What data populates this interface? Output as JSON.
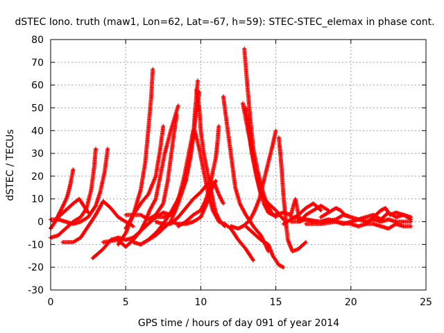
{
  "chart_data": {
    "type": "scatter",
    "title": "dSTEC Iono. truth (maw1, Lon=62, Lat=-67, h=59): STEC-STEC_elemax in phase cont.",
    "xlabel": "GPS time / hours of day 091 of year 2014",
    "ylabel": "dSTEC  / TECUs",
    "xlim": [
      0,
      25
    ],
    "ylim": [
      -30,
      80
    ],
    "xticks": [
      0,
      5,
      10,
      15,
      20,
      25
    ],
    "yticks": [
      -30,
      -20,
      -10,
      0,
      10,
      20,
      30,
      40,
      50,
      60,
      70,
      80
    ],
    "grid": true,
    "marker": "+",
    "color": "#ff0000",
    "series": [
      {
        "values": [
          [
            0.0,
            -7
          ],
          [
            0.5,
            -6
          ],
          [
            1.0,
            -3
          ],
          [
            1.5,
            0
          ],
          [
            2.0,
            2
          ],
          [
            2.4,
            6
          ],
          [
            2.7,
            14
          ],
          [
            2.9,
            24
          ],
          [
            3.0,
            32
          ]
        ]
      },
      {
        "values": [
          [
            0.0,
            -3
          ],
          [
            0.3,
            0
          ],
          [
            0.6,
            4
          ],
          [
            0.9,
            8
          ],
          [
            1.1,
            11
          ],
          [
            1.3,
            16
          ],
          [
            1.5,
            23
          ]
        ]
      },
      {
        "values": [
          [
            0.0,
            1
          ],
          [
            0.5,
            1
          ],
          [
            1.0,
            0
          ],
          [
            1.5,
            -1
          ],
          [
            2.0,
            0
          ],
          [
            2.5,
            2
          ],
          [
            3.0,
            7
          ],
          [
            3.3,
            13
          ],
          [
            3.6,
            22
          ],
          [
            3.8,
            32
          ]
        ]
      },
      {
        "values": [
          [
            0.5,
            2
          ],
          [
            1.0,
            5
          ],
          [
            1.5,
            8
          ],
          [
            1.9,
            10
          ],
          [
            2.2,
            7
          ],
          [
            2.5,
            4
          ]
        ]
      },
      {
        "values": [
          [
            0.8,
            -9
          ],
          [
            1.5,
            -9
          ],
          [
            2.0,
            -7
          ],
          [
            2.5,
            -2
          ],
          [
            3.0,
            3
          ],
          [
            3.5,
            9
          ],
          [
            4.0,
            6
          ],
          [
            4.5,
            2
          ],
          [
            5.0,
            0
          ],
          [
            5.5,
            -2
          ]
        ]
      },
      {
        "values": [
          [
            2.8,
            -16
          ],
          [
            3.5,
            -12
          ],
          [
            4.0,
            -8
          ],
          [
            4.5,
            -7
          ],
          [
            5.0,
            -8
          ],
          [
            5.5,
            -7
          ],
          [
            6.0,
            -4
          ],
          [
            6.5,
            -1
          ],
          [
            7.0,
            2
          ],
          [
            7.5,
            4
          ],
          [
            8.0,
            3
          ]
        ]
      },
      {
        "values": [
          [
            3.5,
            -9
          ],
          [
            4.5,
            -8
          ],
          [
            5.0,
            -11
          ],
          [
            5.5,
            -8
          ],
          [
            6.0,
            -4
          ],
          [
            6.3,
            0
          ],
          [
            6.6,
            5
          ],
          [
            7.0,
            10
          ],
          [
            7.3,
            20
          ],
          [
            7.6,
            30
          ],
          [
            8.0,
            40
          ],
          [
            8.5,
            51
          ]
        ]
      },
      {
        "values": [
          [
            4.5,
            -10
          ],
          [
            5.0,
            -5
          ],
          [
            5.5,
            3
          ],
          [
            6.0,
            14
          ],
          [
            6.3,
            26
          ],
          [
            6.5,
            40
          ],
          [
            6.7,
            55
          ],
          [
            6.8,
            67
          ]
        ]
      },
      {
        "values": [
          [
            5.0,
            -3
          ],
          [
            5.5,
            3
          ],
          [
            6.0,
            8
          ],
          [
            6.5,
            12
          ],
          [
            7.0,
            20
          ],
          [
            7.3,
            32
          ],
          [
            7.5,
            42
          ]
        ]
      },
      {
        "values": [
          [
            5.0,
            3
          ],
          [
            6.0,
            3
          ],
          [
            6.5,
            1
          ],
          [
            7.0,
            3
          ],
          [
            7.5,
            8
          ],
          [
            7.8,
            18
          ],
          [
            8.0,
            28
          ],
          [
            8.2,
            38
          ],
          [
            8.4,
            47
          ]
        ]
      },
      {
        "values": [
          [
            5.5,
            -9
          ],
          [
            6.0,
            -10
          ],
          [
            6.5,
            -8
          ],
          [
            7.0,
            -5
          ],
          [
            7.5,
            -1
          ],
          [
            8.0,
            4
          ],
          [
            8.5,
            10
          ],
          [
            9.0,
            18
          ],
          [
            9.3,
            28
          ],
          [
            9.5,
            37
          ],
          [
            9.6,
            47
          ],
          [
            9.8,
            62
          ]
        ]
      },
      {
        "values": [
          [
            6.0,
            -10
          ],
          [
            7.0,
            -6
          ],
          [
            8.0,
            0
          ],
          [
            8.5,
            8
          ],
          [
            9.0,
            18
          ],
          [
            9.3,
            28
          ],
          [
            9.5,
            38
          ],
          [
            9.7,
            48
          ],
          [
            9.9,
            57
          ]
        ]
      },
      {
        "values": [
          [
            8.5,
            -2
          ],
          [
            9.0,
            0
          ],
          [
            9.5,
            3
          ],
          [
            10.0,
            5
          ],
          [
            10.3,
            9
          ],
          [
            10.6,
            15
          ],
          [
            10.8,
            22
          ],
          [
            11.0,
            28
          ],
          [
            11.1,
            34
          ],
          [
            11.2,
            42
          ]
        ]
      },
      {
        "values": [
          [
            9.7,
            58
          ],
          [
            9.9,
            50
          ],
          [
            10.0,
            40
          ],
          [
            10.2,
            30
          ],
          [
            10.5,
            20
          ],
          [
            10.8,
            10
          ],
          [
            11.0,
            4
          ],
          [
            11.3,
            0
          ],
          [
            11.6,
            -2
          ]
        ]
      },
      {
        "values": [
          [
            9.6,
            40
          ],
          [
            9.9,
            32
          ],
          [
            10.2,
            22
          ],
          [
            10.5,
            12
          ],
          [
            10.8,
            5
          ],
          [
            11.2,
            0
          ],
          [
            11.6,
            -1
          ],
          [
            12.0,
            -3
          ],
          [
            12.5,
            -8
          ],
          [
            13.0,
            -12
          ],
          [
            13.3,
            -15
          ],
          [
            13.5,
            -17
          ]
        ]
      },
      {
        "values": [
          [
            7.0,
            0
          ],
          [
            7.5,
            -1
          ],
          [
            8.0,
            -1
          ],
          [
            8.5,
            2
          ],
          [
            9.0,
            6
          ],
          [
            9.5,
            10
          ],
          [
            10.0,
            13
          ],
          [
            10.5,
            17
          ],
          [
            10.9,
            17
          ],
          [
            11.2,
            12
          ],
          [
            11.5,
            8
          ]
        ]
      },
      {
        "values": [
          [
            8.0,
            0
          ],
          [
            8.5,
            -1
          ],
          [
            9.0,
            -1
          ],
          [
            9.5,
            0
          ],
          [
            10.0,
            2
          ],
          [
            10.4,
            8
          ],
          [
            10.7,
            14
          ],
          [
            11.0,
            18
          ]
        ]
      },
      {
        "values": [
          [
            7.0,
            2
          ],
          [
            7.5,
            2
          ],
          [
            8.0,
            3
          ],
          [
            8.3,
            6
          ],
          [
            8.6,
            12
          ],
          [
            8.9,
            20
          ],
          [
            9.2,
            30
          ],
          [
            9.5,
            40
          ]
        ]
      },
      {
        "values": [
          [
            11.5,
            55
          ],
          [
            11.7,
            45
          ],
          [
            11.9,
            35
          ],
          [
            12.1,
            25
          ],
          [
            12.3,
            15
          ],
          [
            12.6,
            8
          ],
          [
            13.0,
            3
          ],
          [
            13.5,
            -2
          ],
          [
            14.0,
            -6
          ],
          [
            14.3,
            -10
          ],
          [
            14.5,
            -13
          ]
        ]
      },
      {
        "values": [
          [
            12.0,
            -2
          ],
          [
            12.5,
            -3
          ],
          [
            12.8,
            -2
          ],
          [
            13.0,
            -1
          ],
          [
            13.3,
            1
          ],
          [
            13.6,
            5
          ],
          [
            13.9,
            10
          ],
          [
            14.2,
            18
          ],
          [
            14.5,
            26
          ],
          [
            14.8,
            34
          ],
          [
            15.0,
            40
          ]
        ]
      },
      {
        "values": [
          [
            12.9,
            76
          ],
          [
            13.1,
            60
          ],
          [
            13.3,
            45
          ],
          [
            13.5,
            32
          ],
          [
            13.8,
            22
          ],
          [
            14.1,
            14
          ],
          [
            14.4,
            8
          ],
          [
            14.7,
            4
          ],
          [
            15.0,
            2
          ]
        ]
      },
      {
        "values": [
          [
            12.8,
            52
          ],
          [
            13.0,
            45
          ],
          [
            13.3,
            35
          ],
          [
            13.6,
            25
          ],
          [
            13.9,
            15
          ],
          [
            14.2,
            8
          ],
          [
            14.5,
            4
          ],
          [
            14.8,
            3
          ],
          [
            15.2,
            3
          ]
        ]
      },
      {
        "values": [
          [
            13.0,
            50
          ],
          [
            13.2,
            40
          ],
          [
            13.4,
            30
          ],
          [
            13.7,
            20
          ],
          [
            14.0,
            12
          ],
          [
            14.5,
            8
          ],
          [
            15.0,
            5
          ],
          [
            15.5,
            1
          ]
        ]
      },
      {
        "values": [
          [
            15.2,
            37
          ],
          [
            15.3,
            30
          ],
          [
            15.4,
            22
          ],
          [
            15.5,
            12
          ],
          [
            15.6,
            5
          ],
          [
            15.7,
            -2
          ],
          [
            15.8,
            -8
          ],
          [
            16.1,
            -13
          ],
          [
            16.5,
            -12
          ],
          [
            17.0,
            -9
          ]
        ]
      },
      {
        "values": [
          [
            13.0,
            -2
          ],
          [
            13.5,
            -5
          ],
          [
            14.0,
            -8
          ],
          [
            14.5,
            -10
          ],
          [
            14.8,
            -15
          ],
          [
            15.2,
            -19
          ],
          [
            15.5,
            -20
          ]
        ]
      },
      {
        "values": [
          [
            15.0,
            3
          ],
          [
            15.5,
            4
          ],
          [
            16.0,
            3
          ],
          [
            16.3,
            10
          ],
          [
            16.6,
            0
          ],
          [
            17.0,
            3
          ],
          [
            17.5,
            5
          ],
          [
            18.0,
            7
          ],
          [
            18.5,
            5
          ]
        ]
      },
      {
        "values": [
          [
            15.5,
            -1
          ],
          [
            16.0,
            1
          ],
          [
            16.5,
            3
          ],
          [
            17.0,
            6
          ],
          [
            17.5,
            8
          ],
          [
            18.0,
            5
          ]
        ]
      },
      {
        "values": [
          [
            16.0,
            0
          ],
          [
            16.5,
            0
          ],
          [
            17.0,
            1
          ],
          [
            17.5,
            0
          ],
          [
            18.0,
            0
          ],
          [
            18.5,
            1
          ],
          [
            19.0,
            0
          ],
          [
            19.5,
            -1
          ],
          [
            20.0,
            0
          ],
          [
            20.5,
            1
          ],
          [
            21.0,
            0
          ],
          [
            21.5,
            1
          ],
          [
            22.0,
            0
          ],
          [
            22.5,
            1
          ],
          [
            23.0,
            0
          ],
          [
            23.5,
            0
          ],
          [
            24.0,
            0
          ]
        ]
      },
      {
        "values": [
          [
            16.0,
            2
          ],
          [
            17.0,
            1
          ],
          [
            18.0,
            0
          ],
          [
            19.0,
            1
          ],
          [
            19.5,
            3
          ],
          [
            20.0,
            2
          ],
          [
            20.5,
            1
          ],
          [
            21.0,
            2
          ],
          [
            21.5,
            3
          ],
          [
            22.0,
            1
          ],
          [
            22.5,
            4
          ],
          [
            23.0,
            2
          ],
          [
            23.5,
            3
          ],
          [
            24.0,
            1
          ]
        ]
      },
      {
        "values": [
          [
            17.0,
            -1
          ],
          [
            18.0,
            -1
          ],
          [
            19.0,
            0
          ],
          [
            20.0,
            -1
          ],
          [
            20.5,
            -2
          ],
          [
            21.0,
            -1
          ],
          [
            21.5,
            -1
          ],
          [
            22.0,
            -2
          ],
          [
            22.5,
            -3
          ],
          [
            23.0,
            -1
          ],
          [
            23.5,
            -2
          ],
          [
            24.0,
            -2
          ]
        ]
      },
      {
        "values": [
          [
            21.0,
            -1
          ],
          [
            21.5,
            2
          ],
          [
            22.0,
            5
          ],
          [
            22.3,
            6
          ],
          [
            22.6,
            3
          ],
          [
            23.0,
            4
          ],
          [
            23.5,
            3
          ],
          [
            24.0,
            2
          ]
        ]
      },
      {
        "values": [
          [
            18.0,
            2
          ],
          [
            18.5,
            4
          ],
          [
            19.0,
            6
          ],
          [
            19.3,
            5
          ],
          [
            19.6,
            3
          ],
          [
            20.0,
            2
          ]
        ]
      }
    ]
  }
}
